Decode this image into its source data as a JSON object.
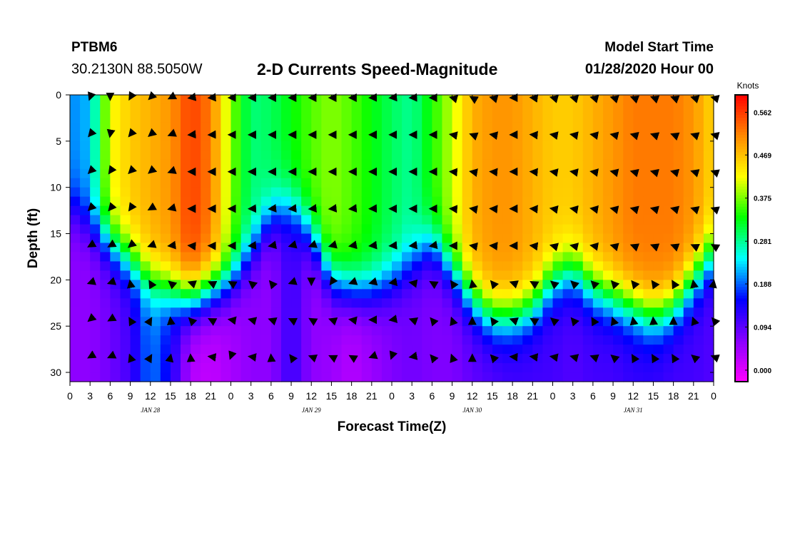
{
  "header": {
    "station_id": "PTBM6",
    "coords": "30.2130N 88.5050W",
    "title": "2-D Currents Speed-Magnitude",
    "start_label": "Model Start Time",
    "start_value": "01/28/2020 Hour 00"
  },
  "chart_data": {
    "type": "heatmap",
    "title": "2-D Currents Speed-Magnitude",
    "xlabel": "Forecast Time(Z)",
    "ylabel": "Depth (ft)",
    "xlim": [
      0,
      96
    ],
    "ylim": [
      31,
      0
    ],
    "x_tick_values": [
      0,
      3,
      6,
      9,
      12,
      15,
      18,
      21,
      24,
      27,
      30,
      33,
      36,
      39,
      42,
      45,
      48,
      51,
      54,
      57,
      60,
      63,
      66,
      69,
      72,
      75,
      78,
      81,
      84,
      87,
      90,
      93,
      96
    ],
    "x_tick_labels": [
      "0",
      "3",
      "6",
      "9",
      "12",
      "15",
      "18",
      "21",
      "0",
      "3",
      "6",
      "9",
      "12",
      "15",
      "18",
      "21",
      "0",
      "3",
      "6",
      "9",
      "12",
      "15",
      "18",
      "21",
      "0",
      "3",
      "6",
      "9",
      "12",
      "15",
      "18",
      "21",
      "0"
    ],
    "y_ticks": [
      0,
      5,
      10,
      15,
      20,
      25,
      30
    ],
    "day_labels": [
      {
        "text": "JAN 28",
        "hour": 12
      },
      {
        "text": "JAN 29",
        "hour": 36
      },
      {
        "text": "JAN 30",
        "hour": 60
      },
      {
        "text": "JAN 31",
        "hour": 84
      }
    ],
    "colorbar": {
      "title": "Knots",
      "range": [
        -0.025,
        0.6
      ],
      "ticks": [
        "0.562",
        "0.469",
        "0.375",
        "0.281",
        "0.188",
        "0.094",
        "0.000"
      ],
      "tick_values": [
        0.562,
        0.469,
        0.375,
        0.281,
        0.188,
        0.094,
        0.0
      ],
      "colors": [
        "#ff00ff",
        "#8800ff",
        "#0000ff",
        "#00ffff",
        "#00ff00",
        "#ffff00",
        "#ff8800",
        "#ff0000"
      ]
    },
    "speed_profiles": [
      {
        "hour": 0,
        "top": 0.2,
        "thermo": 12,
        "bottom": 0.06
      },
      {
        "hour": 3,
        "top": 0.22,
        "thermo": 14,
        "bottom": 0.06
      },
      {
        "hour": 6,
        "top": 0.42,
        "thermo": 16,
        "bottom": 0.08
      },
      {
        "hour": 9,
        "top": 0.46,
        "thermo": 18,
        "bottom": 0.11
      },
      {
        "hour": 12,
        "top": 0.48,
        "thermo": 20,
        "bottom": 0.2
      },
      {
        "hour": 15,
        "top": 0.5,
        "thermo": 21,
        "bottom": 0.14
      },
      {
        "hour": 18,
        "top": 0.56,
        "thermo": 22,
        "bottom": 0.03
      },
      {
        "hour": 21,
        "top": 0.52,
        "thermo": 21,
        "bottom": 0.02
      },
      {
        "hour": 24,
        "top": 0.38,
        "thermo": 20,
        "bottom": 0.04
      },
      {
        "hour": 27,
        "top": 0.29,
        "thermo": 17,
        "bottom": 0.06
      },
      {
        "hour": 30,
        "top": 0.3,
        "thermo": 13,
        "bottom": 0.06
      },
      {
        "hour": 33,
        "top": 0.33,
        "thermo": 12,
        "bottom": 0.12
      },
      {
        "hour": 36,
        "top": 0.36,
        "thermo": 15,
        "bottom": 0.06
      },
      {
        "hour": 39,
        "top": 0.38,
        "thermo": 20,
        "bottom": 0.05
      },
      {
        "hour": 42,
        "top": 0.36,
        "thermo": 21,
        "bottom": 0.03
      },
      {
        "hour": 45,
        "top": 0.33,
        "thermo": 21,
        "bottom": 0.05
      },
      {
        "hour": 48,
        "top": 0.3,
        "thermo": 20,
        "bottom": 0.07
      },
      {
        "hour": 51,
        "top": 0.28,
        "thermo": 18,
        "bottom": 0.08
      },
      {
        "hour": 54,
        "top": 0.34,
        "thermo": 16,
        "bottom": 0.07
      },
      {
        "hour": 57,
        "top": 0.4,
        "thermo": 19,
        "bottom": 0.07
      },
      {
        "hour": 60,
        "top": 0.48,
        "thermo": 22,
        "bottom": 0.09
      },
      {
        "hour": 63,
        "top": 0.5,
        "thermo": 24,
        "bottom": 0.1
      },
      {
        "hour": 66,
        "top": 0.5,
        "thermo": 24,
        "bottom": 0.11
      },
      {
        "hour": 69,
        "top": 0.48,
        "thermo": 23,
        "bottom": 0.11
      },
      {
        "hour": 72,
        "top": 0.46,
        "thermo": 20,
        "bottom": 0.11
      },
      {
        "hour": 75,
        "top": 0.46,
        "thermo": 19,
        "bottom": 0.1
      },
      {
        "hour": 78,
        "top": 0.48,
        "thermo": 21,
        "bottom": 0.11
      },
      {
        "hour": 81,
        "top": 0.5,
        "thermo": 22,
        "bottom": 0.11
      },
      {
        "hour": 84,
        "top": 0.52,
        "thermo": 23,
        "bottom": 0.12
      },
      {
        "hour": 87,
        "top": 0.52,
        "thermo": 24,
        "bottom": 0.12
      },
      {
        "hour": 90,
        "top": 0.52,
        "thermo": 23,
        "bottom": 0.11
      },
      {
        "hour": 93,
        "top": 0.5,
        "thermo": 20,
        "bottom": 0.11
      },
      {
        "hour": 96,
        "top": 0.45,
        "thermo": 17,
        "bottom": 0.1
      }
    ],
    "vector_depths": [
      0,
      4,
      8,
      12,
      16,
      20,
      24,
      28
    ],
    "vector_direction_profiles": [
      {
        "hour": 3,
        "dirs": [
          200,
          220,
          225,
          225,
          240,
          250,
          230,
          240
        ]
      },
      {
        "hour": 6,
        "dirs": [
          180,
          190,
          215,
          220,
          240,
          250,
          240,
          245
        ]
      },
      {
        "hour": 9,
        "dirs": [
          210,
          220,
          225,
          215,
          230,
          350,
          330,
          340
        ]
      },
      {
        "hour": 12,
        "dirs": [
          225,
          230,
          230,
          240,
          250,
          330,
          30,
          30
        ]
      },
      {
        "hour": 18,
        "dirs": [
          260,
          265,
          270,
          270,
          275,
          290,
          315,
          355
        ]
      },
      {
        "hour": 24,
        "dirs": [
          270,
          270,
          270,
          270,
          270,
          300,
          280,
          200
        ]
      },
      {
        "hour": 30,
        "dirs": [
          270,
          270,
          270,
          265,
          260,
          320,
          290,
          355
        ]
      },
      {
        "hour": 36,
        "dirs": [
          270,
          270,
          270,
          265,
          250,
          180,
          300,
          290
        ]
      },
      {
        "hour": 42,
        "dirs": [
          270,
          270,
          270,
          265,
          260,
          250,
          280,
          300
        ]
      },
      {
        "hour": 48,
        "dirs": [
          265,
          270,
          270,
          270,
          265,
          260,
          260,
          200
        ]
      },
      {
        "hour": 54,
        "dirs": [
          270,
          270,
          270,
          270,
          260,
          300,
          320,
          320
        ]
      },
      {
        "hour": 60,
        "dirs": [
          300,
          290,
          280,
          280,
          280,
          350,
          0,
          0
        ]
      },
      {
        "hour": 66,
        "dirs": [
          270,
          270,
          270,
          270,
          270,
          290,
          290,
          275
        ]
      },
      {
        "hour": 72,
        "dirs": [
          285,
          280,
          280,
          280,
          285,
          310,
          310,
          280
        ]
      },
      {
        "hour": 78,
        "dirs": [
          285,
          280,
          280,
          280,
          280,
          315,
          330,
          290
        ]
      },
      {
        "hour": 84,
        "dirs": [
          290,
          285,
          285,
          285,
          290,
          320,
          350,
          330
        ]
      },
      {
        "hour": 90,
        "dirs": [
          290,
          290,
          285,
          285,
          290,
          330,
          0,
          330
        ]
      },
      {
        "hour": 96,
        "dirs": [
          285,
          285,
          290,
          290,
          300,
          10,
          320,
          290
        ]
      }
    ]
  }
}
